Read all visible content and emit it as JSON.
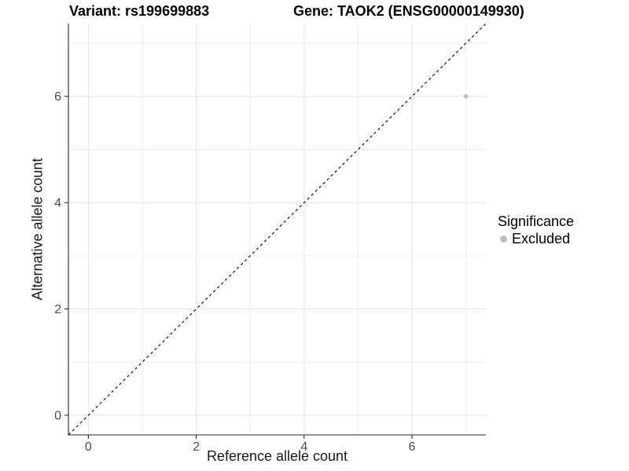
{
  "chart_data": {
    "type": "scatter",
    "title_left": "Variant: rs199699883",
    "title_right": "Gene: TAOK2 (ENSG00000149930)",
    "xlabel": "Reference allele count",
    "ylabel": "Alternative allele count",
    "xlim": [
      -0.37,
      7.37
    ],
    "ylim": [
      -0.37,
      7.37
    ],
    "x_major_ticks": [
      0,
      2,
      4,
      6
    ],
    "x_minor_ticks": [
      1,
      3,
      5,
      7
    ],
    "y_major_ticks": [
      0,
      2,
      4,
      6
    ],
    "y_minor_ticks": [
      1,
      3,
      5,
      7
    ],
    "grid": "major+minor",
    "reference_line": {
      "slope": 1,
      "intercept": 0,
      "style": "dashed",
      "color": "#000000"
    },
    "series": [
      {
        "name": "Excluded",
        "color": "#bdbdbd",
        "points": [
          {
            "x": 7,
            "y": 6
          }
        ]
      }
    ],
    "legend": {
      "title": "Significance",
      "position": "right",
      "items": [
        {
          "label": "Excluded",
          "color": "#bdbdbd",
          "marker": "circle"
        }
      ]
    },
    "colors": {
      "background": "#ffffff",
      "grid_major": "#e3e3e3",
      "grid_minor": "#ececec",
      "axis_line": "#2b2b2b",
      "tick_label": "#4d4d4d"
    }
  }
}
